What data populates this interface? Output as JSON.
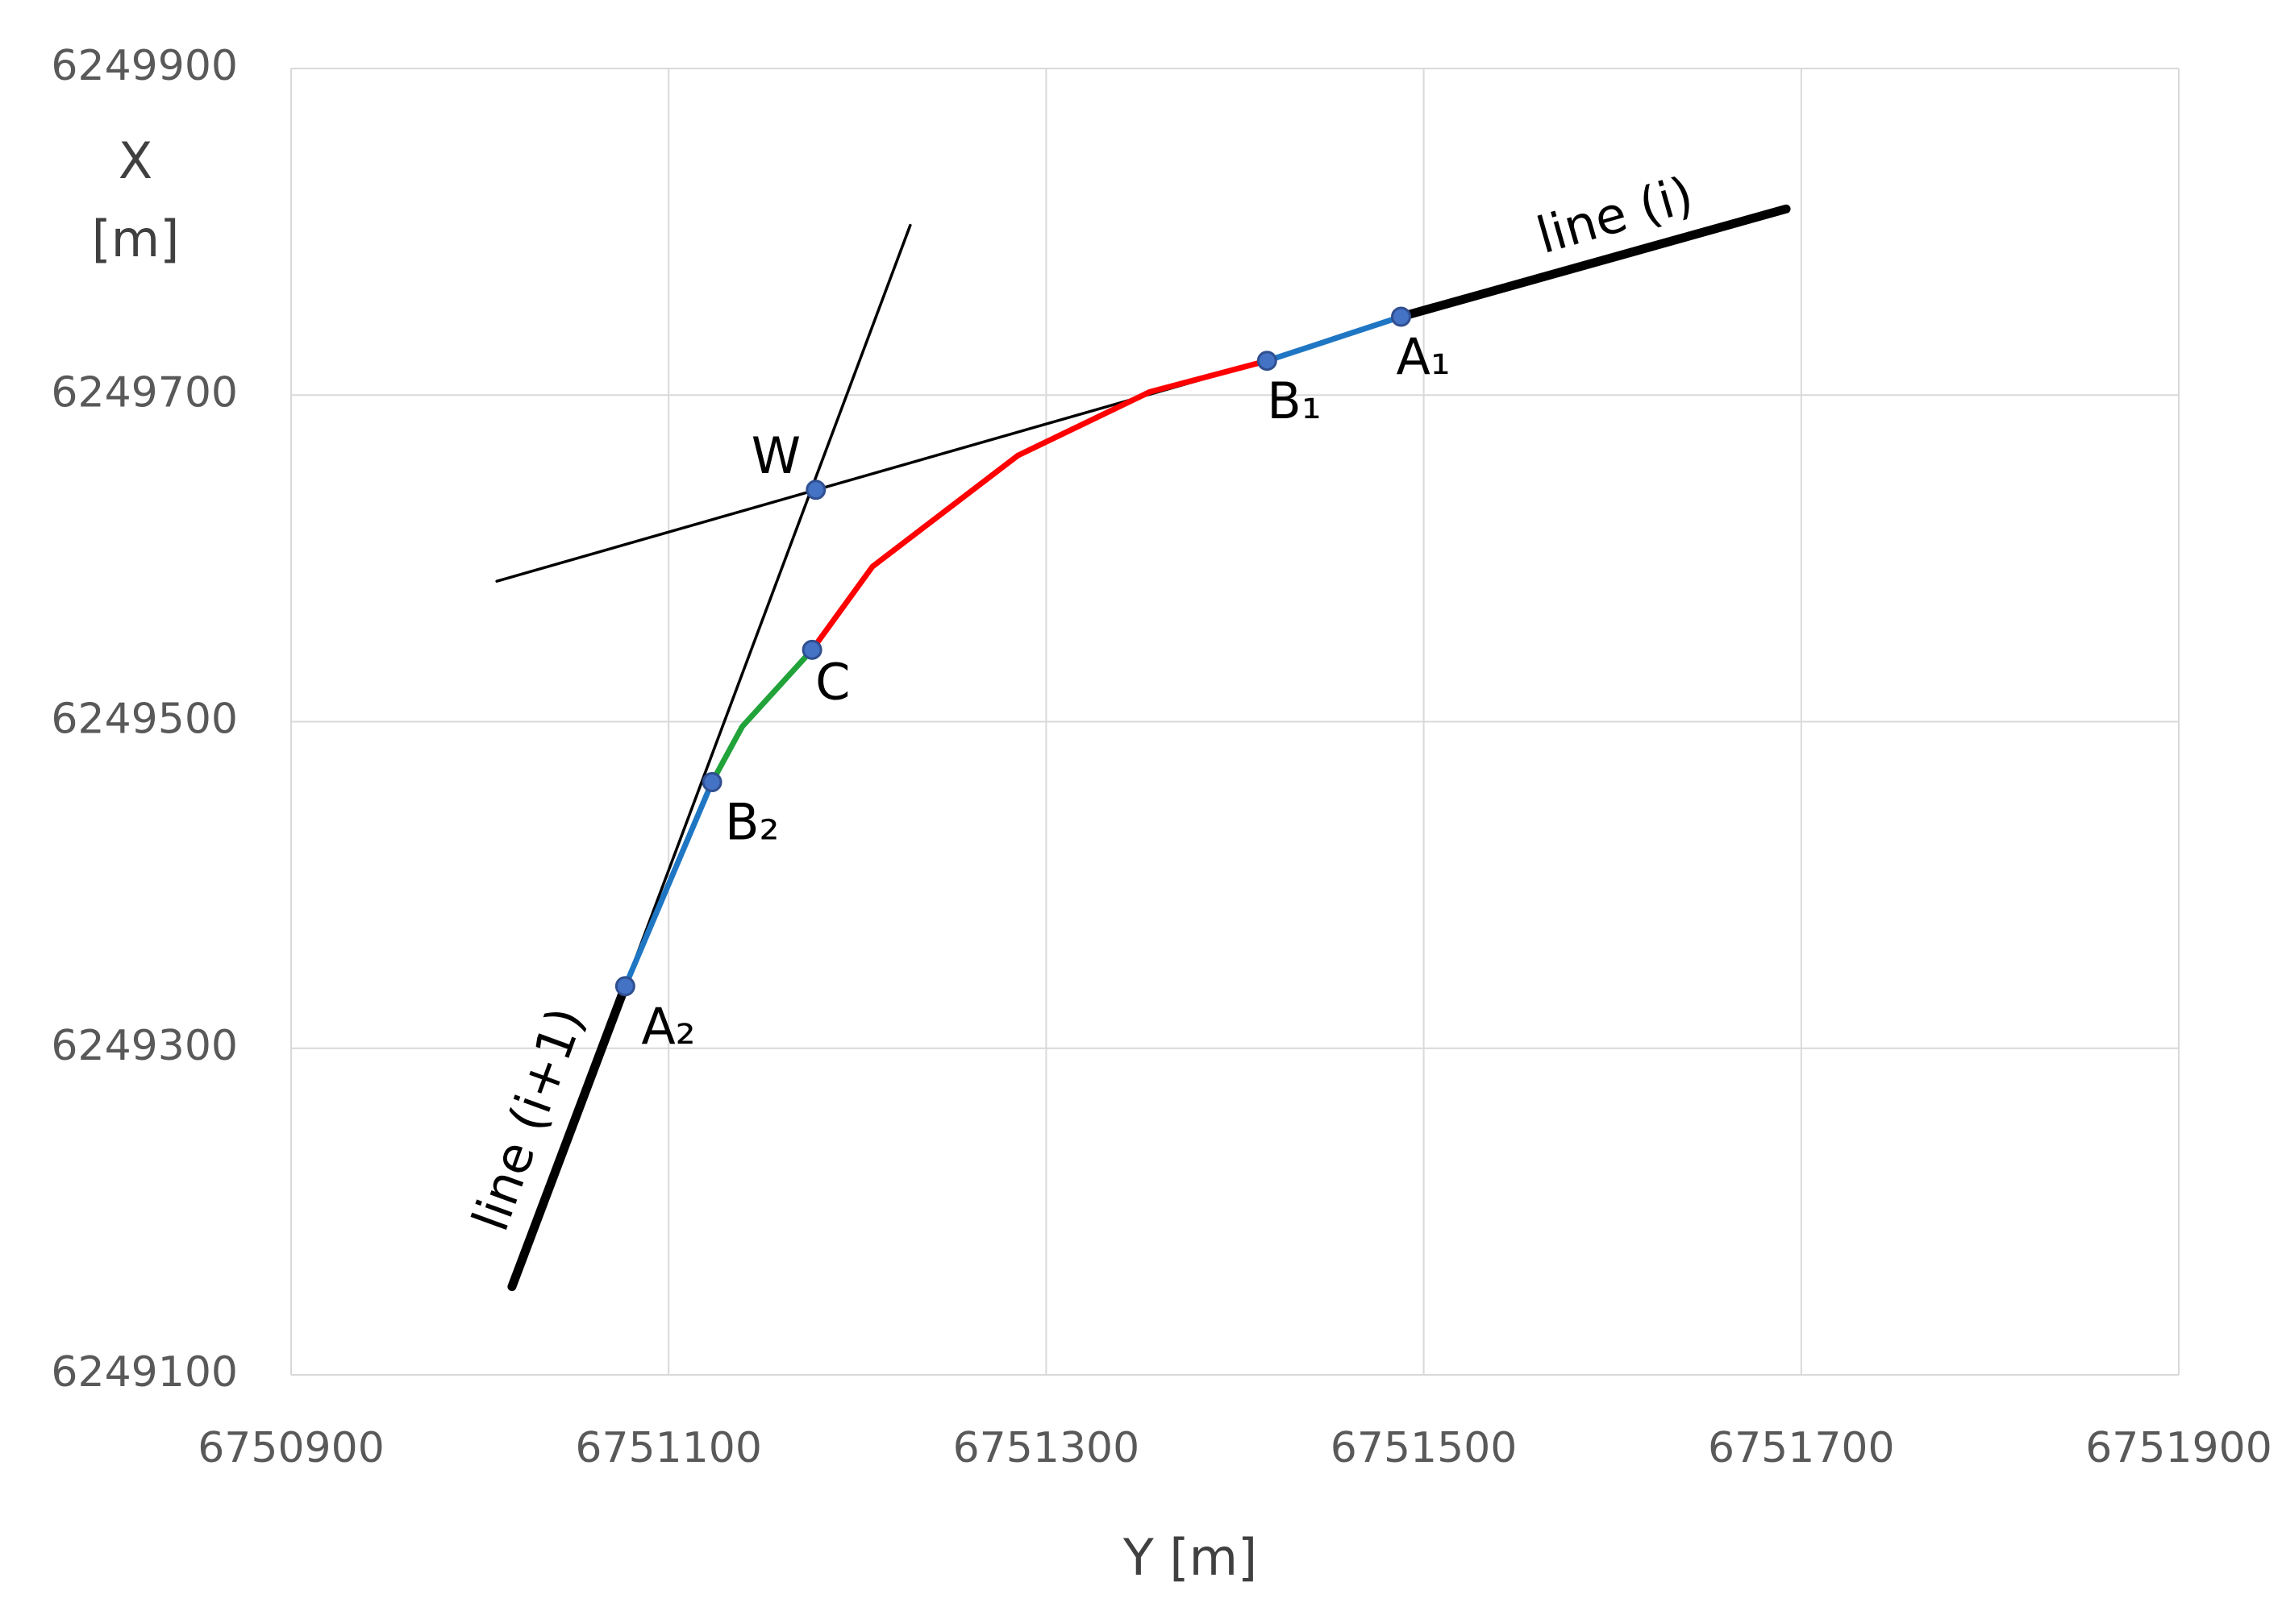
{
  "chart_data": {
    "type": "line",
    "xlabel": "Y [m]",
    "ylabel": [
      "X",
      "[m]"
    ],
    "xlim": [
      6750900,
      6751900
    ],
    "xticks": [
      6750900,
      6751100,
      6751300,
      6751500,
      6751700,
      6751900
    ],
    "ylim": [
      6249100,
      6249900
    ],
    "yticks": [
      6249100,
      6249300,
      6249500,
      6249700,
      6249900
    ],
    "grid": true,
    "series": [
      {
        "style": "thin",
        "color": "#000000",
        "x": [
          6751009,
          6751417
        ],
        "values": [
          6249586,
          6249721
        ]
      },
      {
        "style": "thin",
        "color": "#000000",
        "x": [
          6751077,
          6751228
        ],
        "values": [
          6249338,
          6249804
        ]
      },
      {
        "style": "thick",
        "color": "#000000",
        "x": [
          6751488,
          6751692
        ],
        "values": [
          6249748,
          6249814
        ]
      },
      {
        "style": "thick",
        "color": "#000000",
        "x": [
          6751077,
          6751017
        ],
        "values": [
          6249338,
          6249154
        ]
      },
      {
        "style": "medium",
        "color": "#1f77c4",
        "x": [
          6751417,
          6751488
        ],
        "values": [
          6249721,
          6249748
        ]
      },
      {
        "style": "medium",
        "color": "#1f77c4",
        "x": [
          6751077,
          6751123
        ],
        "values": [
          6249338,
          6249463
        ]
      },
      {
        "style": "medium",
        "color": "#21a33a",
        "x": [
          6751123,
          6751139,
          6751176
        ],
        "values": [
          6249463,
          6249497,
          6249544
        ]
      },
      {
        "style": "medium",
        "color": "#ff0000",
        "x": [
          6751176,
          6751208,
          6751285,
          6751355,
          6751417
        ],
        "values": [
          6249544,
          6249595,
          6249663,
          6249702,
          6249721
        ]
      }
    ],
    "points": {
      "color": "#4472c4",
      "labels": [
        "A₁",
        "B₁",
        "W",
        "C",
        "B₂",
        "A₂"
      ],
      "x": [
        6751488,
        6751417,
        6751178,
        6751176,
        6751123,
        6751077
      ],
      "values": [
        6249748,
        6249721,
        6249642,
        6249544,
        6249463,
        6249338
      ]
    },
    "annotations": [
      "line (i)",
      "line (i+1)"
    ]
  }
}
